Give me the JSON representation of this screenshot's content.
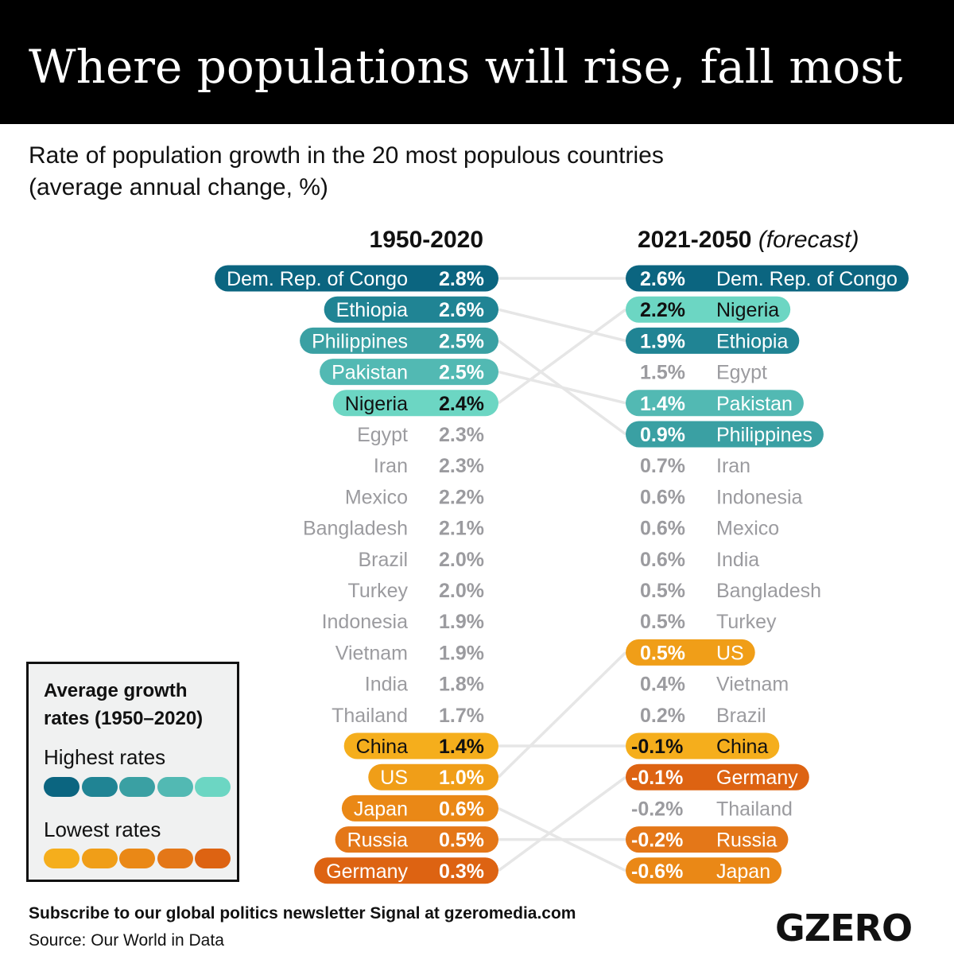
{
  "header": {
    "title": "Where populations will rise, fall most",
    "subtitle_line1": "Rate of population growth in the 20 most populous countries",
    "subtitle_line2": "(average annual change, %)"
  },
  "columns": {
    "left_heading": "1950-2020",
    "right_heading": "2021-2050",
    "right_heading_note": "(forecast)"
  },
  "colors": {
    "high": [
      "#0b6580",
      "#208494",
      "#3aa0a3",
      "#52b9b3",
      "#6cd6c3"
    ],
    "low": [
      "#f5ae1c",
      "#f09e18",
      "#ea8816",
      "#e47718",
      "#dd6312"
    ],
    "neutral_text": "#9b9b9f",
    "connector": "#e6e6e6"
  },
  "legend": {
    "title_line1": "Average growth",
    "title_line2": "rates (1950–2020)",
    "high_label": "Highest rates",
    "low_label": "Lowest rates"
  },
  "footer": {
    "subscribe": "Subscribe to our global politics newsletter Signal at gzeromedia.com",
    "source": "Source: Our World in Data",
    "logo": "GZERO"
  },
  "chart_data": {
    "type": "table",
    "title": "Where populations will rise, fall most",
    "subtitle": "Rate of population growth in the 20 most populous countries (average annual change, %)",
    "columns": [
      "1950-2020",
      "2021-2050 (forecast)"
    ],
    "left": [
      {
        "country": "Dem. Rep. of Congo",
        "value": "2.8%",
        "group": "high",
        "shade": 0
      },
      {
        "country": "Ethiopia",
        "value": "2.6%",
        "group": "high",
        "shade": 1
      },
      {
        "country": "Philippines",
        "value": "2.5%",
        "group": "high",
        "shade": 2
      },
      {
        "country": "Pakistan",
        "value": "2.5%",
        "group": "high",
        "shade": 3
      },
      {
        "country": "Nigeria",
        "value": "2.4%",
        "group": "high",
        "shade": 4
      },
      {
        "country": "Egypt",
        "value": "2.3%",
        "group": "none"
      },
      {
        "country": "Iran",
        "value": "2.3%",
        "group": "none"
      },
      {
        "country": "Mexico",
        "value": "2.2%",
        "group": "none"
      },
      {
        "country": "Bangladesh",
        "value": "2.1%",
        "group": "none"
      },
      {
        "country": "Brazil",
        "value": "2.0%",
        "group": "none"
      },
      {
        "country": "Turkey",
        "value": "2.0%",
        "group": "none"
      },
      {
        "country": "Indonesia",
        "value": "1.9%",
        "group": "none"
      },
      {
        "country": "Vietnam",
        "value": "1.9%",
        "group": "none"
      },
      {
        "country": "India",
        "value": "1.8%",
        "group": "none"
      },
      {
        "country": "Thailand",
        "value": "1.7%",
        "group": "none"
      },
      {
        "country": "China",
        "value": "1.4%",
        "group": "low",
        "shade": 0
      },
      {
        "country": "US",
        "value": "1.0%",
        "group": "low",
        "shade": 1
      },
      {
        "country": "Japan",
        "value": "0.6%",
        "group": "low",
        "shade": 2
      },
      {
        "country": "Russia",
        "value": "0.5%",
        "group": "low",
        "shade": 3
      },
      {
        "country": "Germany",
        "value": "0.3%",
        "group": "low",
        "shade": 4
      }
    ],
    "right": [
      {
        "country": "Dem. Rep. of Congo",
        "value": "2.6%",
        "group": "high",
        "shade": 0
      },
      {
        "country": "Nigeria",
        "value": "2.2%",
        "group": "high",
        "shade": 4
      },
      {
        "country": "Ethiopia",
        "value": "1.9%",
        "group": "high",
        "shade": 1
      },
      {
        "country": "Egypt",
        "value": "1.5%",
        "group": "none"
      },
      {
        "country": "Pakistan",
        "value": "1.4%",
        "group": "high",
        "shade": 3
      },
      {
        "country": "Philippines",
        "value": "0.9%",
        "group": "high",
        "shade": 2
      },
      {
        "country": "Iran",
        "value": "0.7%",
        "group": "none"
      },
      {
        "country": "Indonesia",
        "value": "0.6%",
        "group": "none"
      },
      {
        "country": "Mexico",
        "value": "0.6%",
        "group": "none"
      },
      {
        "country": "India",
        "value": "0.6%",
        "group": "none"
      },
      {
        "country": "Bangladesh",
        "value": "0.5%",
        "group": "none"
      },
      {
        "country": "Turkey",
        "value": "0.5%",
        "group": "none"
      },
      {
        "country": "US",
        "value": "0.5%",
        "group": "low",
        "shade": 1
      },
      {
        "country": "Vietnam",
        "value": "0.4%",
        "group": "none"
      },
      {
        "country": "Brazil",
        "value": "0.2%",
        "group": "none"
      },
      {
        "country": "China",
        "value": "-0.1%",
        "group": "low",
        "shade": 0
      },
      {
        "country": "Germany",
        "value": "-0.1%",
        "group": "low",
        "shade": 4
      },
      {
        "country": "Thailand",
        "value": "-0.2%",
        "group": "none"
      },
      {
        "country": "Russia",
        "value": "-0.2%",
        "group": "low",
        "shade": 3
      },
      {
        "country": "Japan",
        "value": "-0.6%",
        "group": "low",
        "shade": 2
      }
    ]
  }
}
